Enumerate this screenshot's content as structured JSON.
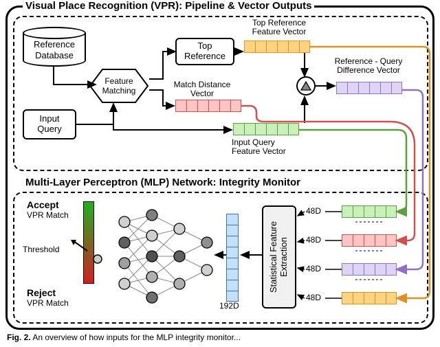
{
  "titles": {
    "top": "Visual Place Recognition (VPR): Pipeline & Vector Outputs",
    "bottom": "Multi-Layer Perceptron (MLP) Network: Integrity Monitor"
  },
  "caption": {
    "prefix": "Fig. 2.",
    "rest": "An overview of how inputs for the MLP integrity monitor..."
  },
  "boxes": {
    "refdb1": "Reference",
    "refdb2": "Database",
    "inputq": "Input\nQuery",
    "fmatch": "Feature\nMatching",
    "topref": "Top\nReference",
    "sfe": "Statistical Feature\nExtraction"
  },
  "labels": {
    "trfv": "Top Reference\nFeature Vector",
    "mdv": "Match Distance\nVector",
    "iqfv": "Input Query\nFeature Vector",
    "rqdv": "Reference - Query\nDifference Vector",
    "accept": "Accept",
    "accept2": "VPR Match",
    "reject": "Reject",
    "reject2": "VPR Match",
    "threshold": "Threshold",
    "d192": "192D",
    "d48": "48D"
  },
  "colors": {
    "orange_fill": "#ffd37f",
    "orange_border": "#e09020",
    "red_fill": "#ffc4c4",
    "red_border": "#d05050",
    "green_fill": "#c8f0b8",
    "green_border": "#5aa040",
    "purple_fill": "#e0d4f5",
    "purple_border": "#9070c0",
    "blue_fill": "#c4e0ff",
    "blue_border": "#4070b0",
    "grad_top": "#20b020",
    "grad_bot": "#d02020",
    "node_fill": "#d0d0d0",
    "node_dark": "#505050",
    "wire_green": "#5aa040",
    "wire_red": "#d05050",
    "wire_purple": "#9070c0",
    "wire_orange": "#e09020"
  }
}
